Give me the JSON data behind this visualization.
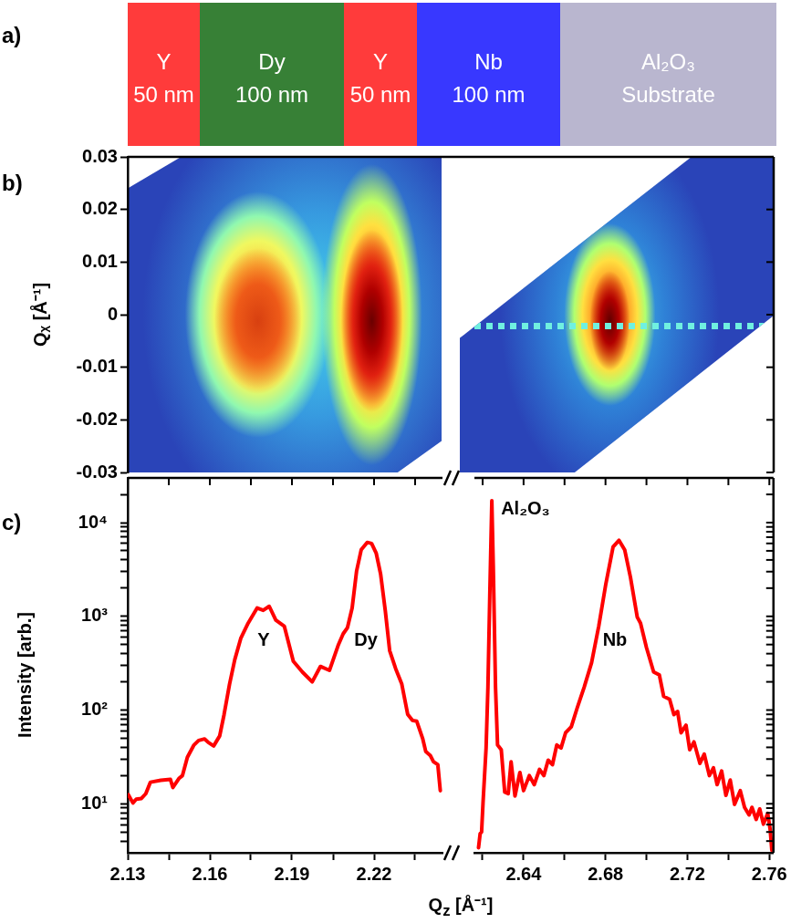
{
  "chart_data": [
    {
      "type": "other",
      "title": "a)",
      "annotations": [
        "Y",
        "50 nm",
        "Dy",
        "100 nm",
        "Y",
        "50 nm",
        "Nb",
        "100 nm",
        "Al₂O₃",
        "Substrate"
      ]
    },
    {
      "type": "heatmap",
      "title": "b)",
      "ylabel": "Qᵪ [Å⁻¹]",
      "categories": [
        null,
        null
      ],
      "ylim": [
        -0.03,
        0.03
      ],
      "yticks": [
        -0.03,
        -0.02,
        -0.01,
        0,
        0.01,
        0.02,
        0.03
      ]
    },
    {
      "type": "line",
      "title": "c)",
      "ylabel": "Intensity [arb.]",
      "log": true,
      "xlim": [
        2.13,
        2.245
      ],
      "xticks": [
        2.13,
        {
          "value": 2.145,
          "label": null
        },
        2.16,
        {
          "value": 2.175,
          "label": null
        },
        2.19,
        {
          "value": 2.205,
          "label": null
        },
        2.22,
        {
          "value": 2.235,
          "label": null
        }
      ],
      "ylim": [
        3,
        30000
      ],
      "yticks": [
        {
          "value": 4,
          "label": null
        },
        {
          "value": 5,
          "label": null
        },
        {
          "value": 6,
          "label": null
        },
        {
          "value": 7,
          "label": null
        },
        {
          "value": 8,
          "label": null
        },
        {
          "value": 9,
          "label": null
        },
        {
          "value": 10,
          "label": "10¹"
        },
        {
          "value": 20,
          "label": null
        },
        {
          "value": 30,
          "label": null
        },
        {
          "value": 40,
          "label": null
        },
        {
          "value": 50,
          "label": null
        },
        {
          "value": 60,
          "label": null
        },
        {
          "value": 70,
          "label": null
        },
        {
          "value": 80,
          "label": null
        },
        {
          "value": 90,
          "label": null
        },
        {
          "value": 100,
          "label": "10²"
        },
        {
          "value": 200,
          "label": null
        },
        {
          "value": 300,
          "label": null
        },
        {
          "value": 400,
          "label": null
        },
        {
          "value": 500,
          "label": null
        },
        {
          "value": 600,
          "label": null
        },
        {
          "value": 700,
          "label": null
        },
        {
          "value": 800,
          "label": null
        },
        {
          "value": 900,
          "label": null
        },
        {
          "value": 1000,
          "label": "10³"
        },
        {
          "value": 2000,
          "label": null
        },
        {
          "value": 3000,
          "label": null
        },
        {
          "value": 4000,
          "label": null
        },
        {
          "value": 5000,
          "label": null
        },
        {
          "value": 6000,
          "label": null
        },
        {
          "value": 7000,
          "label": null
        },
        {
          "value": 8000,
          "label": null
        },
        {
          "value": 9000,
          "label": null
        },
        {
          "value": 10000,
          "label": "10⁴"
        },
        {
          "value": 20000,
          "label": null
        }
      ],
      "x": [
        2.1302,
        2.1319,
        2.1331,
        2.135,
        2.1366,
        2.1383,
        2.1421,
        2.1456,
        2.1465,
        2.1487,
        2.15,
        2.1518,
        2.1542,
        2.1559,
        2.1581,
        2.1595,
        2.1614,
        2.1636,
        2.1652,
        2.1672,
        2.1691,
        2.1713,
        2.174,
        2.1773,
        2.1795,
        2.1817,
        2.1841,
        2.1872,
        2.1905,
        2.1938,
        2.1974,
        2.2004,
        2.2037,
        2.207,
        2.2087,
        2.2103,
        2.212,
        2.2136,
        2.2153,
        2.2175,
        2.2191,
        2.2208,
        2.2224,
        2.2241,
        2.2257,
        2.2279,
        2.2301,
        2.2323,
        2.234,
        2.2356,
        2.2378,
        2.2389,
        2.2406,
        2.2417,
        2.2433,
        2.2442
      ],
      "series": [
        {
          "color": "#ff0000",
          "values": [
            12.5,
            10.2,
            11.2,
            11.4,
            12.8,
            17,
            17.8,
            18.2,
            14.9,
            18.6,
            20,
            31.4,
            42.4,
            47.4,
            49.2,
            45,
            41.4,
            53,
            89.5,
            189,
            344,
            582,
            846,
            1230,
            1160,
            1280,
            912,
            785,
            332,
            255,
            200,
            292,
            265,
            500,
            650,
            760,
            1230,
            3020,
            5130,
            6160,
            6000,
            4700,
            2820,
            1150,
            431,
            276,
            191,
            89.8,
            77.6,
            76,
            49.2,
            36,
            32.6,
            28.1,
            26.1,
            13.8
          ]
        }
      ],
      "annotations": [
        "Y",
        "Dy"
      ]
    },
    {
      "type": "line",
      "xlabel": "Q$_{z}$ [Å⁻¹]",
      "log": true,
      "tick_labels": "x",
      "xlim": [
        2.616,
        2.762
      ],
      "xticks": [
        {
          "value": 2.62,
          "label": null
        },
        2.64,
        {
          "value": 2.66,
          "label": null
        },
        2.68,
        {
          "value": 2.7,
          "label": null
        },
        2.72,
        {
          "value": 2.74,
          "label": null
        },
        2.76
      ],
      "ylim": [
        3,
        30000
      ],
      "yticks": [
        {
          "value": 4,
          "label": null
        },
        {
          "value": 5,
          "label": null
        },
        {
          "value": 6,
          "label": null
        },
        {
          "value": 7,
          "label": null
        },
        {
          "value": 8,
          "label": null
        },
        {
          "value": 9,
          "label": null
        },
        {
          "value": 10,
          "label": null
        },
        {
          "value": 20,
          "label": null
        },
        {
          "value": 30,
          "label": null
        },
        {
          "value": 40,
          "label": null
        },
        {
          "value": 50,
          "label": null
        },
        {
          "value": 60,
          "label": null
        },
        {
          "value": 70,
          "label": null
        },
        {
          "value": 80,
          "label": null
        },
        {
          "value": 90,
          "label": null
        },
        {
          "value": 100,
          "label": null
        },
        {
          "value": 200,
          "label": null
        },
        {
          "value": 300,
          "label": null
        },
        {
          "value": 400,
          "label": null
        },
        {
          "value": 500,
          "label": null
        },
        {
          "value": 600,
          "label": null
        },
        {
          "value": 700,
          "label": null
        },
        {
          "value": 800,
          "label": null
        },
        {
          "value": 900,
          "label": null
        },
        {
          "value": 1000,
          "label": null
        },
        {
          "value": 2000,
          "label": null
        },
        {
          "value": 3000,
          "label": null
        },
        {
          "value": 4000,
          "label": null
        },
        {
          "value": 5000,
          "label": null
        },
        {
          "value": 6000,
          "label": null
        },
        {
          "value": 7000,
          "label": null
        },
        {
          "value": 8000,
          "label": null
        },
        {
          "value": 9000,
          "label": null
        },
        {
          "value": 10000,
          "label": null
        },
        {
          "value": 20000,
          "label": null
        }
      ],
      "x": [
        2.618,
        2.6188,
        2.6195,
        2.6202,
        2.6217,
        2.6226,
        2.6235,
        2.6245,
        2.6252,
        2.6263,
        2.6273,
        2.6291,
        2.6308,
        2.6325,
        2.6339,
        2.6358,
        2.6382,
        2.64,
        2.6428,
        2.6452,
        2.6478,
        2.6499,
        2.652,
        2.6541,
        2.6562,
        2.6583,
        2.6605,
        2.6633,
        2.6661,
        2.6696,
        2.6732,
        2.6767,
        2.6802,
        2.6837,
        2.6866,
        2.6894,
        2.6922,
        2.6955,
        2.6971,
        2.7,
        2.7035,
        2.7063,
        2.7084,
        2.7113,
        2.7134,
        2.7152,
        2.7169,
        2.7193,
        2.7211,
        2.7232,
        2.7261,
        2.7282,
        2.7307,
        2.7327,
        2.7345,
        2.7367,
        2.7388,
        2.7409,
        2.743,
        2.7458,
        2.7479,
        2.7501,
        2.7515,
        2.7536,
        2.7553,
        2.7571,
        2.7592,
        2.7604,
        2.7612
      ],
      "series": [
        {
          "color": "#ff0000",
          "values": [
            3.4,
            4.8,
            5,
            10.2,
            39.4,
            176,
            1660,
            17100,
            3510,
            176,
            42.4,
            37.8,
            13.3,
            12.8,
            28,
            12.1,
            21.6,
            13.8,
            20,
            16,
            23.3,
            20,
            29.2,
            26.1,
            42.4,
            39.4,
            57.2,
            66.4,
            104,
            176,
            320,
            785,
            2240,
            5500,
            6470,
            5100,
            2600,
            982,
            846,
            465,
            255,
            237,
            140,
            130,
            89.5,
            96.5,
            57.2,
            68.9,
            37.8,
            45.7,
            27,
            33.9,
            20,
            24.2,
            16,
            22.4,
            12.3,
            17.9,
            9.85,
            13.8,
            9.15,
            7.6,
            9.15,
            6.8,
            8.8,
            6.06,
            7.9,
            5.3,
            3.2
          ]
        }
      ],
      "annotations": [
        "Al₂O₃",
        "Nb"
      ]
    }
  ]
}
